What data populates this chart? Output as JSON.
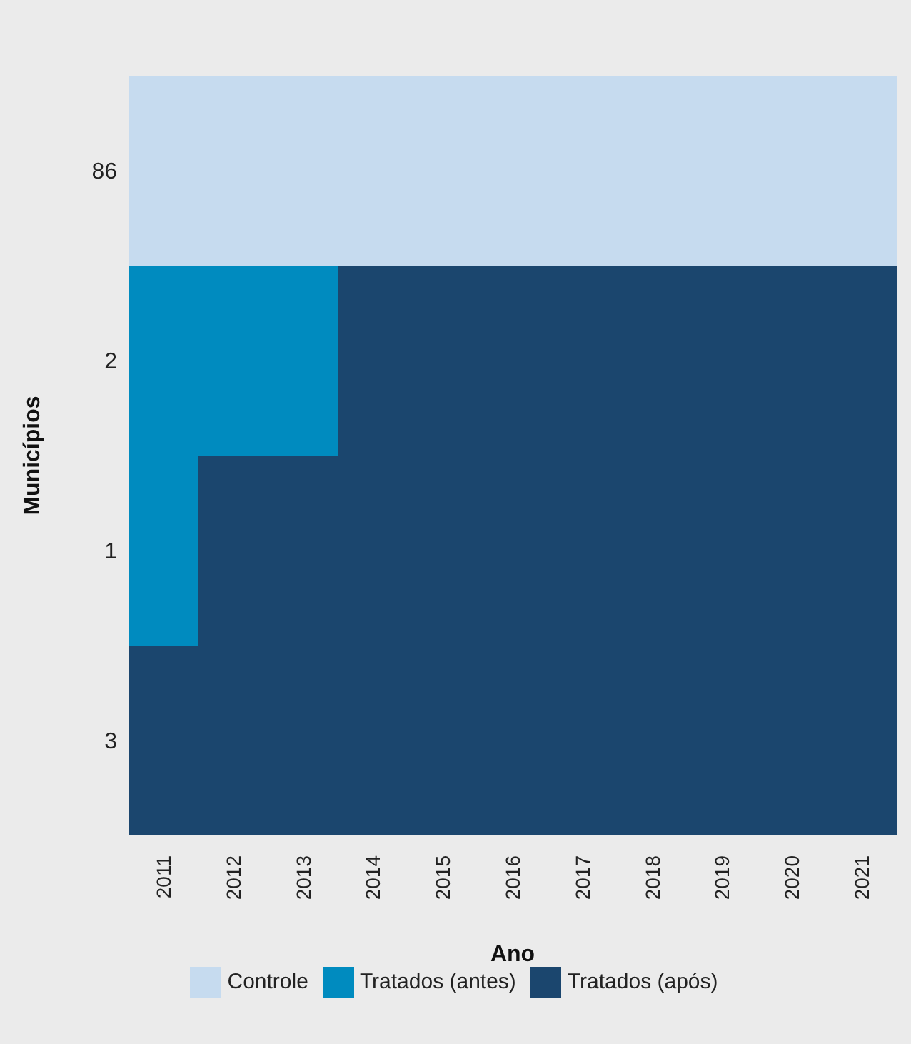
{
  "chart_data": {
    "type": "bar",
    "orientation": "horizontal",
    "xlabel": "Ano",
    "ylabel": "Municípios",
    "categories": [
      "86",
      "2",
      "1",
      "3"
    ],
    "xlim": [
      2010.5,
      2021.5
    ],
    "xticks": [
      2011,
      2012,
      2013,
      2014,
      2015,
      2016,
      2017,
      2018,
      2019,
      2020,
      2021
    ],
    "legend": "bottom",
    "grid": false,
    "series": [
      {
        "name": "Controle",
        "color": "#c6dbef",
        "base": [
          2010.5,
          null,
          null,
          null
        ],
        "values": [
          11,
          null,
          null,
          null
        ]
      },
      {
        "name": "Tratados (antes)",
        "color": "#008bbf",
        "base": [
          null,
          2010.5,
          2010.5,
          null
        ],
        "values": [
          null,
          3,
          1,
          null
        ]
      },
      {
        "name": "Tratados (após)",
        "color": "#1b466e",
        "base": [
          null,
          2013.5,
          2011.5,
          2010.5
        ],
        "values": [
          null,
          8,
          10,
          11
        ]
      }
    ]
  }
}
